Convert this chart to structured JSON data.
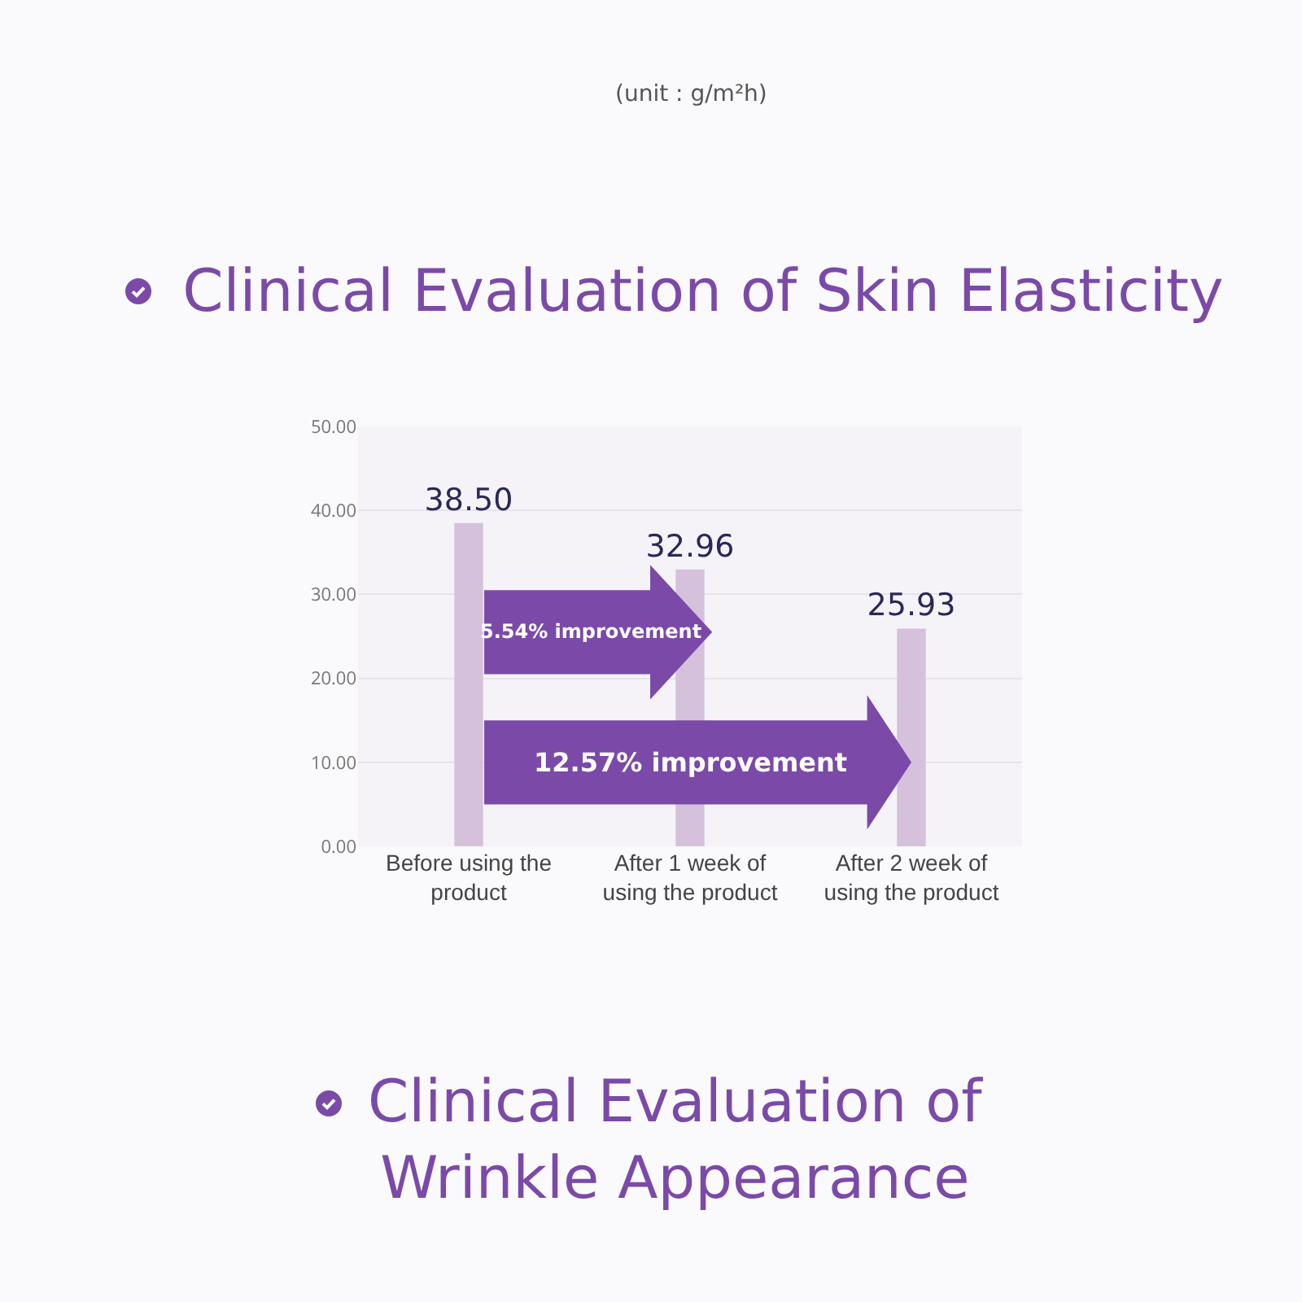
{
  "chart_data": {
    "type": "bar",
    "title": "Clinical Evaluation of Skin Elasticity",
    "categories": [
      "Before using the product",
      "After 1 week of using the product",
      "After 2 week of using the product"
    ],
    "values": [
      38.5,
      32.96,
      25.93
    ],
    "color": "#d5c1dc",
    "value_labels": [
      "38.50",
      "32.96",
      "25.93"
    ],
    "ylim": [
      0,
      50
    ],
    "yticks": [
      {
        "value": 0,
        "label": "0.00"
      },
      {
        "value": 10,
        "label": "10.00"
      },
      {
        "value": 20,
        "label": "20.00"
      },
      {
        "value": 30,
        "label": "30.00"
      },
      {
        "value": 40,
        "label": "40.00"
      },
      {
        "value": 50,
        "label": "50.00"
      }
    ],
    "grid": "y",
    "legend": false,
    "annotations": [
      "(unit : g/m²h)",
      "5.54% improvement",
      "12.57% improvement",
      "Clinical Evaluation of Wrinkle Appearance"
    ]
  }
}
